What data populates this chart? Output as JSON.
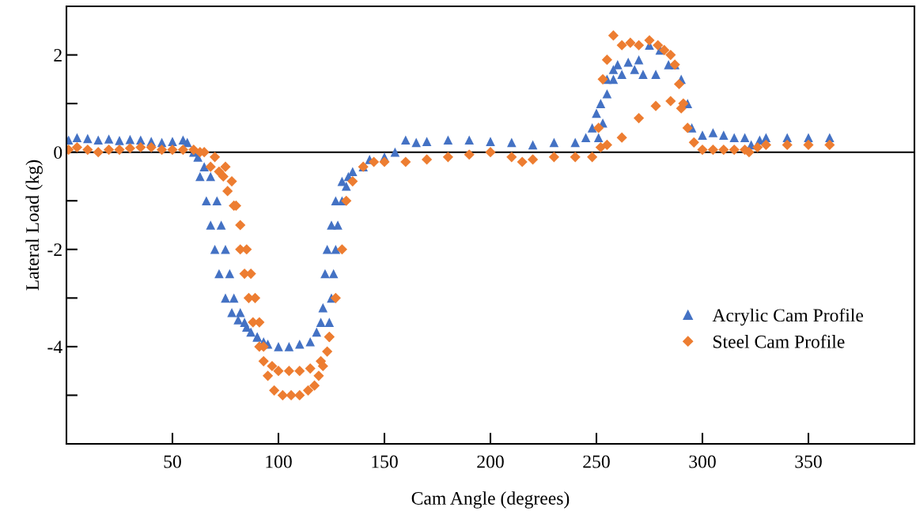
{
  "chart_data": {
    "type": "scatter",
    "xlabel": "Cam Angle (degrees)",
    "ylabel": "Lateral Load (kg)",
    "xlim": [
      0,
      400
    ],
    "xticks": [
      50,
      100,
      150,
      200,
      250,
      300,
      350
    ],
    "ylim": [
      -6,
      3
    ],
    "yticks": [
      {
        "value": -5,
        "label": null
      },
      -4,
      {
        "value": -3,
        "label": null
      },
      -2,
      {
        "value": -1,
        "label": null
      },
      0,
      {
        "value": 1,
        "label": null
      },
      2
    ],
    "grid": false,
    "legend": "right",
    "ref_lines": [
      {
        "axis": "y",
        "value": 0,
        "color": "#000000",
        "line_style": "solid"
      }
    ],
    "series": [
      {
        "name": "Acrylic Cam Profile",
        "color": "#4472c4",
        "marker": "triangle",
        "x": [
          1,
          5,
          10,
          15,
          20,
          25,
          30,
          35,
          40,
          45,
          50,
          55,
          57,
          60,
          63,
          66,
          68,
          70,
          72,
          75,
          78,
          81,
          85,
          90,
          95,
          100,
          105,
          110,
          115,
          118,
          120,
          121,
          122,
          123,
          125,
          127,
          130,
          135,
          140,
          143,
          150,
          155,
          160,
          165,
          170,
          180,
          190,
          200,
          210,
          220,
          230,
          240,
          245,
          248,
          250,
          252,
          255,
          258,
          260,
          265,
          270,
          275,
          280,
          284,
          287,
          290,
          293,
          295,
          300,
          305,
          310,
          315,
          320,
          323,
          327,
          330,
          340,
          350,
          360,
          62,
          65,
          68,
          71,
          73,
          75,
          77,
          79,
          82,
          84,
          87,
          90,
          93,
          124,
          125,
          126,
          127,
          128,
          130,
          132,
          133,
          251,
          253,
          255,
          258,
          262,
          268,
          272,
          278
        ],
        "values": [
          0.25,
          0.3,
          0.28,
          0.25,
          0.27,
          0.24,
          0.26,
          0.25,
          0.22,
          0.2,
          0.22,
          0.25,
          0.2,
          0.0,
          -0.5,
          -1.0,
          -1.5,
          -2.0,
          -2.5,
          -3.0,
          -3.3,
          -3.45,
          -3.6,
          -3.8,
          -3.95,
          -4.0,
          -4.0,
          -3.95,
          -3.9,
          -3.7,
          -3.5,
          -3.2,
          -2.5,
          -2.0,
          -1.5,
          -1.0,
          -0.6,
          -0.4,
          -0.3,
          -0.15,
          -0.1,
          0.0,
          0.25,
          0.2,
          0.22,
          0.25,
          0.25,
          0.22,
          0.2,
          0.15,
          0.2,
          0.2,
          0.3,
          0.5,
          0.8,
          1.0,
          1.5,
          1.7,
          1.8,
          1.85,
          1.9,
          2.2,
          2.1,
          1.8,
          1.8,
          1.5,
          1.0,
          0.5,
          0.35,
          0.4,
          0.35,
          0.3,
          0.3,
          0.15,
          0.25,
          0.3,
          0.3,
          0.3,
          0.3,
          -0.1,
          -0.3,
          -0.5,
          -1.0,
          -1.5,
          -2.0,
          -2.5,
          -3.0,
          -3.3,
          -3.5,
          -3.7,
          -3.8,
          -3.9,
          -3.5,
          -3.0,
          -2.5,
          -2.0,
          -1.5,
          -1.0,
          -0.7,
          -0.5,
          0.3,
          0.6,
          1.2,
          1.5,
          1.6,
          1.7,
          1.6,
          1.6
        ]
      },
      {
        "name": "Steel Cam Profile",
        "color": "#ed7d31",
        "marker": "diamond",
        "x": [
          1,
          5,
          10,
          15,
          20,
          25,
          30,
          35,
          40,
          45,
          50,
          55,
          60,
          65,
          70,
          75,
          78,
          80,
          82,
          85,
          87,
          89,
          91,
          93,
          97,
          100,
          105,
          110,
          115,
          120,
          124,
          127,
          130,
          132,
          135,
          140,
          145,
          150,
          160,
          170,
          180,
          190,
          200,
          210,
          215,
          220,
          230,
          240,
          248,
          252,
          255,
          262,
          270,
          278,
          285,
          290,
          293,
          296,
          300,
          305,
          310,
          315,
          320,
          322,
          326,
          330,
          340,
          350,
          360,
          63,
          68,
          72,
          74,
          76,
          79,
          82,
          84,
          86,
          88,
          91,
          93,
          95,
          98,
          102,
          106,
          110,
          114,
          117,
          119,
          121,
          123,
          124,
          251,
          253,
          255,
          258,
          262,
          266,
          270,
          275,
          279,
          282,
          285,
          287,
          289,
          291
        ],
        "values": [
          0.05,
          0.1,
          0.05,
          0.0,
          0.05,
          0.05,
          0.08,
          0.1,
          0.1,
          0.05,
          0.05,
          0.05,
          0.05,
          0.0,
          -0.1,
          -0.3,
          -0.6,
          -1.1,
          -1.5,
          -2.0,
          -2.5,
          -3.0,
          -3.5,
          -4.0,
          -4.4,
          -4.5,
          -4.5,
          -4.5,
          -4.45,
          -4.3,
          -3.8,
          -3.0,
          -2.0,
          -1.0,
          -0.6,
          -0.3,
          -0.2,
          -0.2,
          -0.2,
          -0.15,
          -0.1,
          -0.05,
          0.0,
          -0.1,
          -0.2,
          -0.15,
          -0.1,
          -0.1,
          -0.1,
          0.1,
          0.15,
          0.3,
          0.7,
          0.95,
          1.05,
          0.9,
          0.5,
          0.2,
          0.05,
          0.05,
          0.05,
          0.05,
          0.05,
          0.0,
          0.1,
          0.15,
          0.15,
          0.15,
          0.15,
          0.0,
          -0.3,
          -0.4,
          -0.5,
          -0.8,
          -1.1,
          -2.0,
          -2.5,
          -3.0,
          -3.5,
          -4.0,
          -4.3,
          -4.6,
          -4.9,
          -5.0,
          -5.0,
          -5.0,
          -4.9,
          -4.8,
          -4.6,
          -4.4,
          -4.1,
          -3.8,
          0.5,
          1.5,
          1.9,
          2.4,
          2.2,
          2.25,
          2.2,
          2.3,
          2.2,
          2.1,
          2.0,
          1.8,
          1.4,
          1.0
        ]
      }
    ]
  }
}
